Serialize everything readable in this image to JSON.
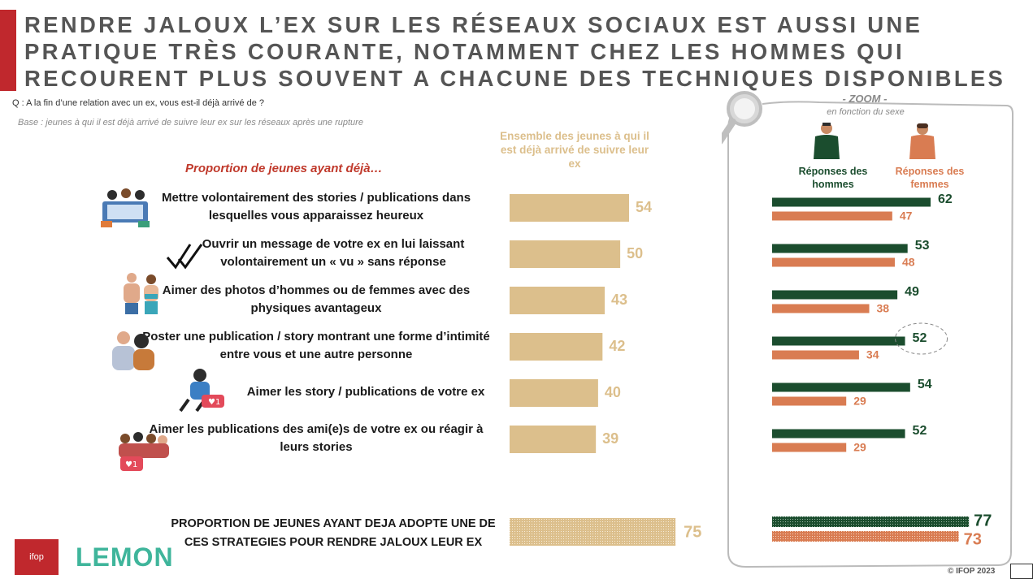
{
  "title": "RENDRE JALOUX L’EX SUR LES RÉSEAUX SOCIAUX EST AUSSI UNE PRATIQUE TRÈS COURANTE, NOTAMMENT CHEZ LES HOMMES QUI RECOURENT PLUS SOUVENT A CHACUNE DES TECHNIQUES DISPONIBLES",
  "question": "Q : A la fin d’une relation avec un ex, vous est-il déjà arrivé de ?",
  "base": "Base : jeunes à qui il est déjà arrivé de suivre leur ex sur les réseaux après une rupture",
  "section_heading": "Proportion de jeunes ayant déjà…",
  "column_header": "Ensemble des jeunes à qui il est déjà arrivé de suivre leur ex",
  "zoom": {
    "title": "- ZOOM -",
    "subtitle": "en fonction du sexe",
    "men_label": "Réponses des hommes",
    "women_label": "Réponses des femmes"
  },
  "total_label": "PROPORTION DE JEUNES AYANT DEJA ADOPTE UNE DE CES STRATEGIES POUR RENDRE JALOUX LEUR EX",
  "logos": {
    "ifop": "ifop",
    "lemon": "LEMON"
  },
  "copyright": "© IFOP 2023",
  "colors": {
    "overall": "#dcbf8c",
    "men": "#1b4d2e",
    "women": "#d97c52",
    "accent": "#c0282d",
    "heading": "#c0392b"
  },
  "icons": [
    "magnifier-icon",
    "man-icon",
    "woman-icon",
    "check-marks-icon",
    "heart-notification-icon"
  ],
  "chart_data": {
    "type": "bar",
    "orientation": "horizontal",
    "categories": [
      "Mettre volontairement des stories / publications dans lesquelles vous apparaissez heureux",
      "Ouvrir un message de votre ex en lui laissant volontairement un « vu » sans réponse",
      "Aimer des photos d’hommes ou de femmes avec des physiques avantageux",
      "Poster une publication / story montrant une forme d’intimité entre vous et une autre personne",
      "Aimer les story / publications de votre ex",
      "Aimer les publications des ami(e)s de votre ex ou réagir à leurs stories"
    ],
    "series": [
      {
        "name": "Ensemble des jeunes à qui il est déjà arrivé de suivre leur ex",
        "values": [
          54,
          50,
          43,
          42,
          40,
          39
        ],
        "total": 75
      },
      {
        "name": "Réponses des hommes",
        "values": [
          62,
          53,
          49,
          52,
          54,
          52
        ],
        "total": 77
      },
      {
        "name": "Réponses des femmes",
        "values": [
          47,
          48,
          38,
          34,
          29,
          29
        ],
        "total": 73
      }
    ],
    "unit": "%",
    "highlighted": {
      "series": "Réponses des hommes",
      "category_index": 3
    },
    "ylim": [
      0,
      100
    ]
  }
}
